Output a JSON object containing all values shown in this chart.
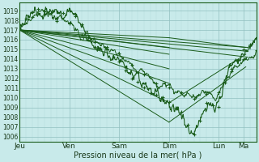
{
  "bg_color": "#c8eaea",
  "grid_color_major": "#90c0c0",
  "grid_color_minor": "#b0d8d8",
  "line_color": "#1a5c1a",
  "ylabel_ticks": [
    1006,
    1007,
    1008,
    1009,
    1010,
    1011,
    1012,
    1013,
    1014,
    1015,
    1016,
    1017,
    1018,
    1019
  ],
  "ylim": [
    1005.5,
    1019.8
  ],
  "xlabel": "Pression niveau de la mer( hPa )",
  "xtick_labels": [
    "Jeu",
    "Ven",
    "Sam",
    "Dim",
    "Lun",
    "Ma"
  ],
  "xtick_positions": [
    0,
    48,
    96,
    144,
    192,
    216
  ],
  "xlim": [
    0,
    228
  ]
}
